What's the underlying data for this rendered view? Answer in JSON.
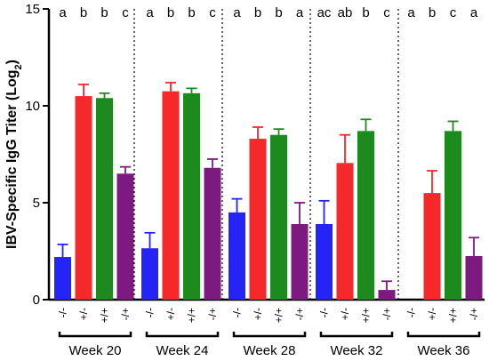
{
  "chart_data": {
    "type": "bar",
    "ylabel_main": "IBV-Specific IgG Titer (Log",
    "ylabel_sub": "2",
    "ylabel_close": ")",
    "xlabel": "",
    "ylim": [
      0,
      15
    ],
    "yticks": [
      "0",
      "5",
      "10",
      "15"
    ],
    "ytick_values": [
      0,
      5,
      10,
      15
    ],
    "grid": false,
    "group_separators": "dotted",
    "categories": [
      "-/-",
      "+/-",
      "+/+",
      "-/+"
    ],
    "category_colors": [
      "#2424f5",
      "#f5282a",
      "#1c8a1c",
      "#7d1a80"
    ],
    "groups": [
      {
        "name": "Week 20",
        "values": [
          2.2,
          10.5,
          10.4,
          6.5
        ],
        "errors": [
          0.65,
          0.6,
          0.25,
          0.35
        ],
        "letters": [
          "a",
          "b",
          "b",
          "c"
        ]
      },
      {
        "name": "Week 24",
        "values": [
          2.65,
          10.75,
          10.65,
          6.8
        ],
        "errors": [
          0.8,
          0.45,
          0.25,
          0.45
        ],
        "letters": [
          "a",
          "b",
          "b",
          "c"
        ]
      },
      {
        "name": "Week 28",
        "values": [
          4.5,
          8.3,
          8.5,
          3.9
        ],
        "errors": [
          0.7,
          0.6,
          0.3,
          1.1
        ],
        "letters": [
          "a",
          "b",
          "b",
          "a"
        ]
      },
      {
        "name": "Week 32",
        "values": [
          3.9,
          7.05,
          8.7,
          0.5
        ],
        "errors": [
          1.2,
          1.45,
          0.6,
          0.45
        ],
        "letters": [
          "ac",
          "ab",
          "b",
          "c"
        ]
      },
      {
        "name": "Week 36",
        "values": [
          0,
          5.5,
          8.7,
          2.25
        ],
        "errors": [
          0,
          1.15,
          0.5,
          0.95
        ],
        "letters": [
          "a",
          "b",
          "c",
          "a"
        ]
      }
    ]
  }
}
